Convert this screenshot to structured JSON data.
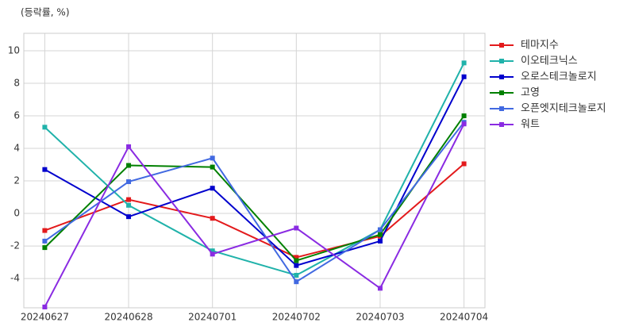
{
  "chart_data": {
    "type": "line",
    "title": "(등락률, %)",
    "categories": [
      "20240627",
      "20240628",
      "20240701",
      "20240702",
      "20240703",
      "20240704"
    ],
    "series": [
      {
        "name": "테마지수",
        "color": "#e31a1c",
        "values": [
          -1.05,
          0.85,
          -0.3,
          -2.7,
          -1.4,
          3.05
        ]
      },
      {
        "name": "이오테크닉스",
        "color": "#20b2aa",
        "values": [
          5.3,
          0.5,
          -2.3,
          -3.8,
          -1.0,
          9.25
        ]
      },
      {
        "name": "오로스테크놀로지",
        "color": "#0000cd",
        "values": [
          2.7,
          -0.2,
          1.55,
          -3.2,
          -1.7,
          8.4
        ]
      },
      {
        "name": "고영",
        "color": "#008000",
        "values": [
          -2.1,
          2.95,
          2.85,
          -2.9,
          -1.3,
          6.0
        ]
      },
      {
        "name": "오픈엣지테크놀로지",
        "color": "#4169e1",
        "values": [
          -1.7,
          1.95,
          3.4,
          -4.2,
          -1.0,
          5.6
        ]
      },
      {
        "name": "워트",
        "color": "#8a2be2",
        "values": [
          -5.75,
          4.1,
          -2.5,
          -0.9,
          -4.6,
          5.5
        ]
      }
    ],
    "ylim": [
      -5.8,
      11.07
    ],
    "yticks": [
      -4,
      -2,
      0,
      2,
      4,
      6,
      8,
      10
    ],
    "grid": true,
    "legend": "outside-right"
  }
}
